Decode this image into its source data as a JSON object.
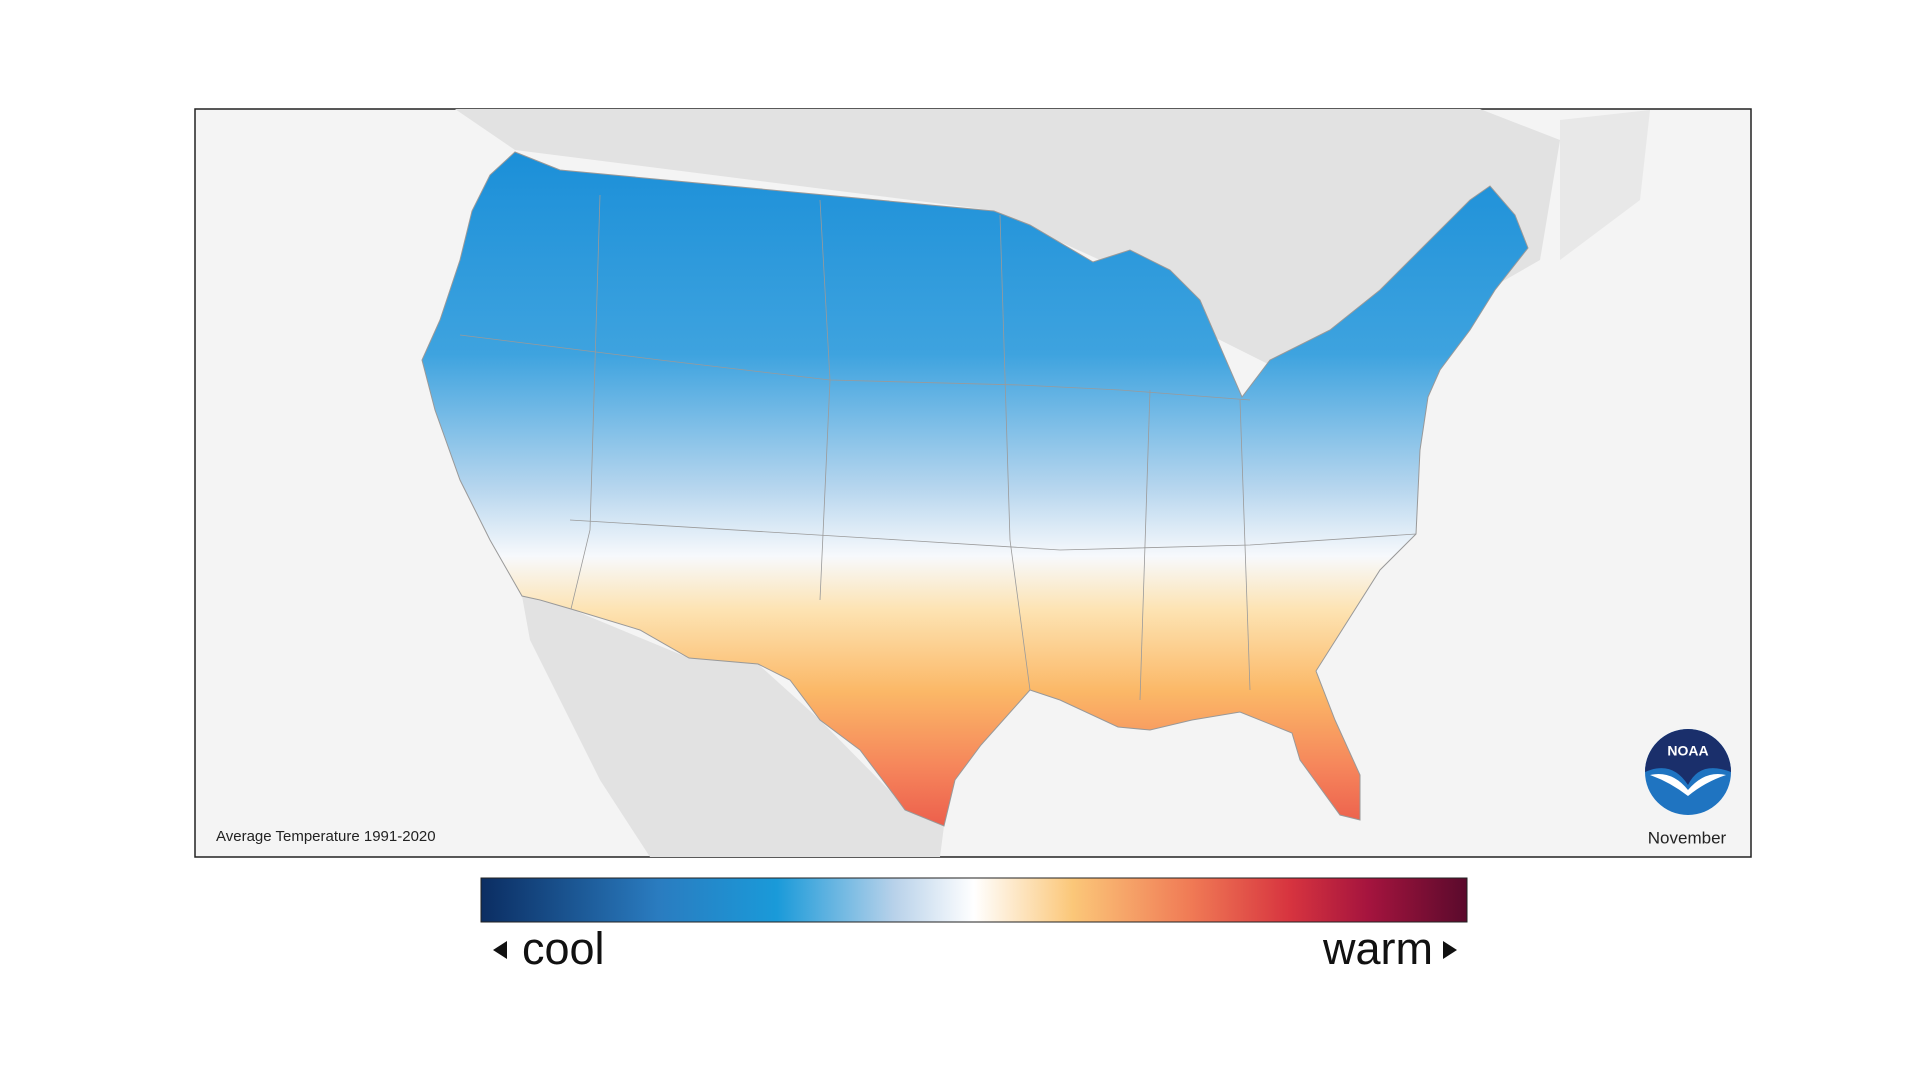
{
  "map": {
    "caption": "Average Temperature 1991-2020",
    "month": "November",
    "logo": "NOAA"
  },
  "legend": {
    "low_label": "cool",
    "high_label": "warm"
  }
}
